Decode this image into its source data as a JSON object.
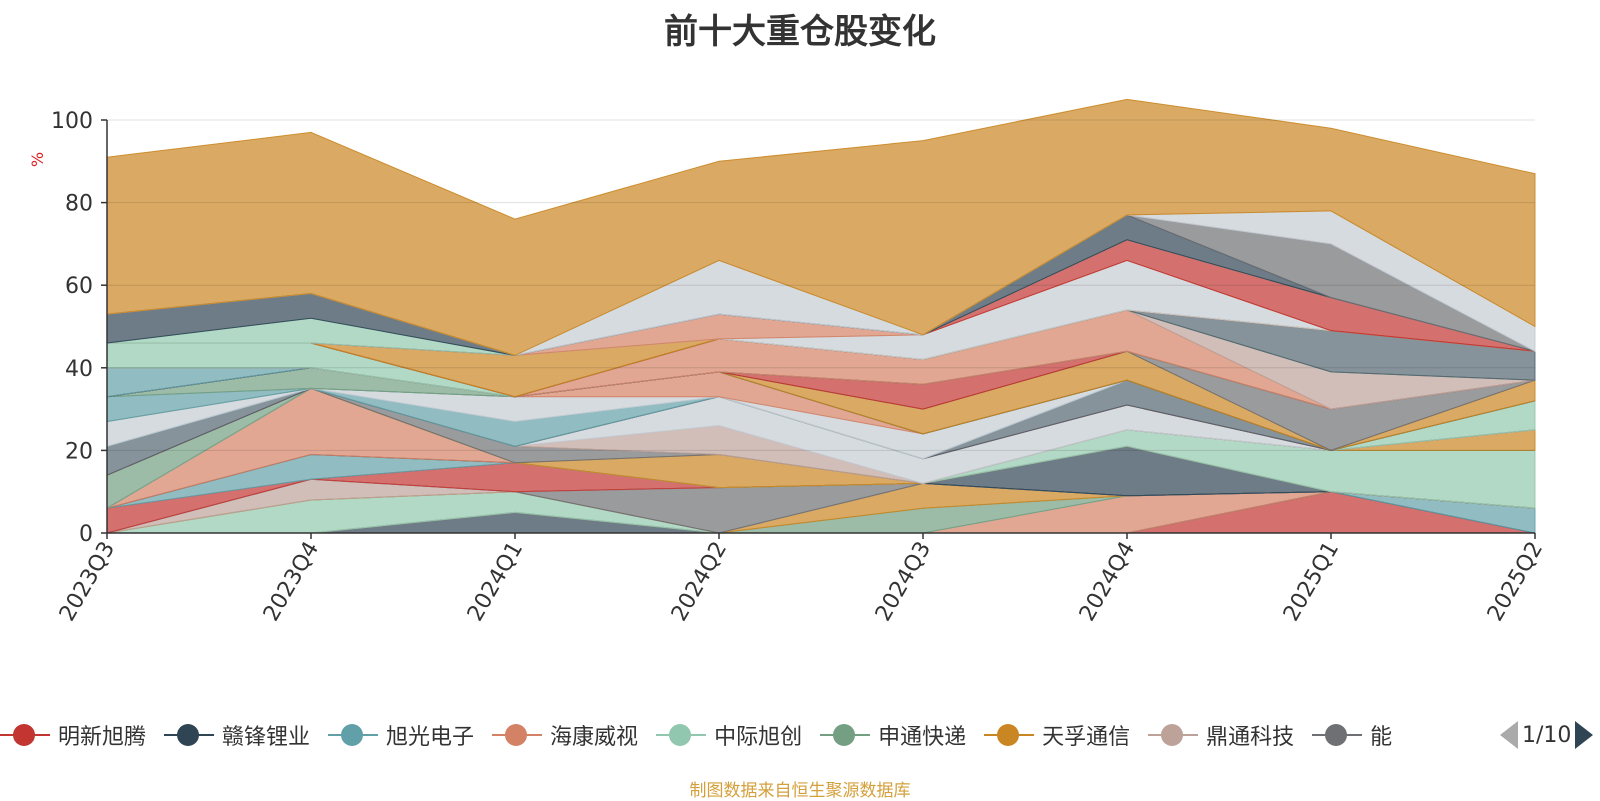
{
  "title": "前十大重仓股变化",
  "unit": "%",
  "source": "制图数据来自恒生聚源数据库",
  "pager": "1/10",
  "legend_overflow_fragment": "能",
  "chart_data": {
    "type": "area",
    "stacked": true,
    "title": "前十大重仓股变化",
    "ylabel": "%",
    "ylim": [
      0,
      100
    ],
    "yticks": [
      0,
      20,
      40,
      60,
      80,
      100
    ],
    "grid": true,
    "legend_position": "bottom",
    "categories": [
      "2023Q3",
      "2023Q4",
      "2024Q1",
      "2024Q2",
      "2024Q3",
      "2024Q4",
      "2025Q1",
      "2025Q2"
    ],
    "series": [
      {
        "name": "明新旭腾",
        "color": "#c23531",
        "values": [
          0,
          0,
          0,
          0,
          0,
          0,
          10,
          0
        ]
      },
      {
        "name": "赣锋锂业",
        "color": "#2f4554",
        "values": [
          0,
          0,
          5,
          0,
          0,
          0,
          0,
          0
        ]
      },
      {
        "name": "旭光电子",
        "color": "#61a0a8",
        "values": [
          0,
          0,
          0,
          0,
          0,
          0,
          0,
          6
        ]
      },
      {
        "name": "海康威视",
        "color": "#d48265",
        "values": [
          0,
          0,
          0,
          0,
          0,
          9,
          0,
          0
        ]
      },
      {
        "name": "中际旭创",
        "color": "#91c7ae",
        "values": [
          0,
          8,
          5,
          0,
          0,
          0,
          0,
          0
        ]
      },
      {
        "name": "申通快递",
        "color": "#749f83",
        "values": [
          0,
          0,
          0,
          0,
          6,
          0,
          0,
          0
        ]
      },
      {
        "name": "天孚通信",
        "color": "#ca8622",
        "values": [
          0,
          0,
          0,
          0,
          6,
          0,
          0,
          0
        ]
      },
      {
        "name": "鼎通科技",
        "color": "#bda29a",
        "values": [
          0,
          5,
          0,
          0,
          0,
          0,
          0,
          0
        ]
      },
      {
        "name": "",
        "color": "#6e7074",
        "values": [
          0,
          0,
          0,
          11,
          0,
          0,
          0,
          0
        ]
      },
      {
        "color": "#546570",
        "values": [
          0,
          0,
          0,
          0,
          0,
          0,
          0,
          0
        ]
      },
      {
        "color": "#c4ccd3",
        "values": [
          0,
          0,
          0,
          0,
          0,
          0,
          0,
          0
        ]
      },
      {
        "color": "#c23531",
        "values": [
          6,
          0,
          7,
          0,
          0,
          0,
          0,
          0
        ]
      },
      {
        "color": "#61a0a8",
        "values": [
          0,
          6,
          0,
          0,
          0,
          0,
          0,
          0
        ]
      },
      {
        "color": "#2f4554",
        "values": [
          0,
          0,
          0,
          0,
          0,
          12,
          0,
          0
        ]
      },
      {
        "color": "#d48265",
        "values": [
          0,
          16,
          0,
          0,
          0,
          0,
          0,
          0
        ]
      },
      {
        "color": "#91c7ae",
        "values": [
          0,
          0,
          0,
          0,
          0,
          4,
          10,
          14
        ]
      },
      {
        "color": "#ca8622",
        "values": [
          0,
          0,
          0,
          8,
          0,
          0,
          0,
          5
        ]
      },
      {
        "color": "#6e7074",
        "values": [
          0,
          0,
          4,
          0,
          0,
          0,
          0,
          0
        ]
      },
      {
        "color": "#bda29a",
        "values": [
          0,
          0,
          0,
          7,
          0,
          0,
          0,
          0
        ]
      },
      {
        "color": "#c4ccd3",
        "values": [
          0,
          0,
          0,
          7,
          6,
          6,
          0,
          0
        ]
      },
      {
        "color": "#749f83",
        "values": [
          8,
          0,
          0,
          0,
          0,
          0,
          0,
          0
        ]
      },
      {
        "color": "#c23531",
        "values": [
          0,
          0,
          0,
          0,
          0,
          0,
          0,
          0
        ]
      },
      {
        "color": "#546570",
        "values": [
          7,
          0,
          0,
          0,
          0,
          6,
          0,
          0
        ]
      },
      {
        "color": "#61a0a8",
        "values": [
          0,
          0,
          6,
          0,
          0,
          0,
          0,
          0
        ]
      },
      {
        "color": "#c4ccd3",
        "values": [
          6,
          0,
          6,
          0,
          6,
          0,
          0,
          0
        ]
      },
      {
        "color": "#d48265",
        "values": [
          0,
          0,
          0,
          6,
          0,
          0,
          0,
          0
        ]
      },
      {
        "color": "#91c7ae",
        "values": [
          0,
          0,
          0,
          0,
          0,
          0,
          0,
          7
        ]
      },
      {
        "color": "#61a0a8",
        "values": [
          6,
          0,
          0,
          0,
          0,
          0,
          0,
          0
        ]
      },
      {
        "color": "#749f83",
        "values": [
          0,
          5,
          0,
          0,
          0,
          0,
          0,
          0
        ]
      },
      {
        "color": "#2f4554",
        "values": [
          0,
          0,
          0,
          0,
          0,
          0,
          0,
          0
        ]
      },
      {
        "color": "#ca8622",
        "values": [
          0,
          0,
          0,
          0,
          6,
          7,
          0,
          5
        ]
      },
      {
        "color": "#6e7074",
        "values": [
          0,
          0,
          0,
          0,
          0,
          0,
          10,
          0
        ]
      },
      {
        "color": "#c23531",
        "values": [
          0,
          0,
          0,
          0,
          6,
          0,
          0,
          0
        ]
      },
      {
        "color": "#2f4554",
        "values": [
          0,
          0,
          0,
          0,
          0,
          0,
          0,
          0
        ]
      },
      {
        "color": "#61a0a8",
        "values": [
          7,
          0,
          0,
          0,
          0,
          0,
          0,
          0
        ]
      },
      {
        "color": "#d48265",
        "values": [
          0,
          0,
          0,
          8,
          6,
          10,
          0,
          0
        ]
      },
      {
        "color": "#bda29a",
        "values": [
          0,
          0,
          0,
          0,
          0,
          0,
          9,
          0
        ]
      },
      {
        "color": "#91c7ae",
        "values": [
          6,
          6,
          0,
          0,
          0,
          0,
          0,
          0
        ]
      },
      {
        "color": "#749f83",
        "values": [
          0,
          0,
          0,
          0,
          0,
          0,
          0,
          0
        ]
      },
      {
        "color": "#546570",
        "values": [
          0,
          0,
          0,
          0,
          0,
          0,
          10,
          7
        ]
      },
      {
        "color": "#6e7074",
        "values": [
          0,
          0,
          0,
          0,
          0,
          0,
          0,
          0
        ]
      },
      {
        "color": "#c23531",
        "values": [
          0,
          0,
          0,
          0,
          0,
          0,
          0,
          0
        ]
      },
      {
        "color": "#ca8622",
        "values": [
          0,
          0,
          10,
          0,
          0,
          0,
          0,
          0
        ]
      },
      {
        "color": "#c4ccd3",
        "values": [
          0,
          0,
          0,
          0,
          6,
          12,
          0,
          0
        ]
      },
      {
        "color": "#d48265",
        "values": [
          0,
          0,
          0,
          6,
          0,
          0,
          0,
          0
        ]
      },
      {
        "color": "#c23531",
        "values": [
          0,
          0,
          0,
          0,
          0,
          5,
          8,
          0
        ]
      },
      {
        "color": "#91c7ae",
        "values": [
          0,
          6,
          0,
          0,
          0,
          0,
          0,
          0
        ]
      },
      {
        "color": "#2f4554",
        "values": [
          7,
          6,
          0,
          0,
          0,
          6,
          0,
          0
        ]
      },
      {
        "color": "#6e7074",
        "values": [
          0,
          0,
          0,
          0,
          0,
          0,
          13,
          0
        ]
      },
      {
        "color": "#c4ccd3",
        "values": [
          0,
          0,
          0,
          13,
          0,
          0,
          8,
          6
        ]
      },
      {
        "color": "#ca8622",
        "values": [
          38,
          39,
          33,
          24,
          47,
          28,
          20,
          37
        ]
      }
    ]
  }
}
